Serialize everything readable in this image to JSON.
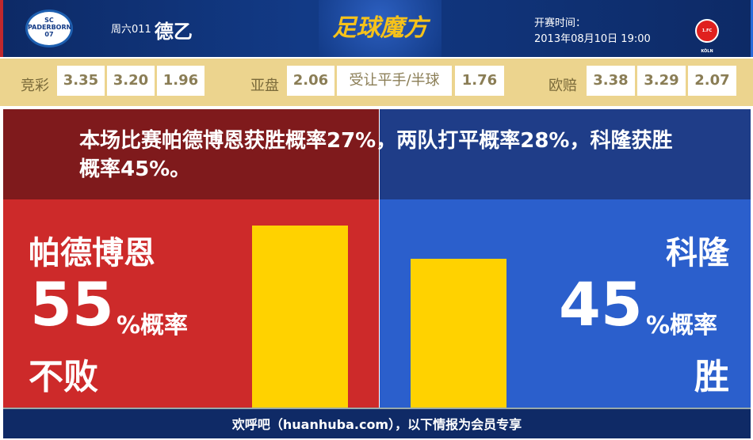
{
  "header": {
    "home_logo_text": "SC PADERBORN 07",
    "match_code": "周六011",
    "league": "德乙",
    "brand": "足球魔方",
    "kickoff_label": "开赛时间：",
    "kickoff_time": "2013年08月10日 19:00",
    "away_logo_text": "1.FC KÖLN"
  },
  "odds": {
    "jingcai": {
      "label": "竞彩",
      "values": [
        "3.35",
        "3.20",
        "1.96"
      ]
    },
    "asian": {
      "label": "亚盘",
      "home": "2.06",
      "handicap": "受让平手/半球",
      "away": "1.76"
    },
    "euro": {
      "label": "欧赔",
      "values": [
        "3.38",
        "3.29",
        "2.07"
      ]
    }
  },
  "summary": "本场比赛帕德博恩获胜概率27%，两队打平概率28%，科隆获胜概率45%。",
  "home": {
    "team": "帕德博恩",
    "percent": "55",
    "unit": "%概率",
    "outcome": "不败",
    "value": 55
  },
  "away": {
    "team": "科隆",
    "percent": "45",
    "unit": "%概率",
    "outcome": "胜",
    "value": 45
  },
  "colors": {
    "home": "#cd2a2a",
    "away": "#2b5fcc",
    "bar": "#ffd200"
  },
  "footer": "欢呼吧（huanhuba.com），以下情报为会员专享"
}
